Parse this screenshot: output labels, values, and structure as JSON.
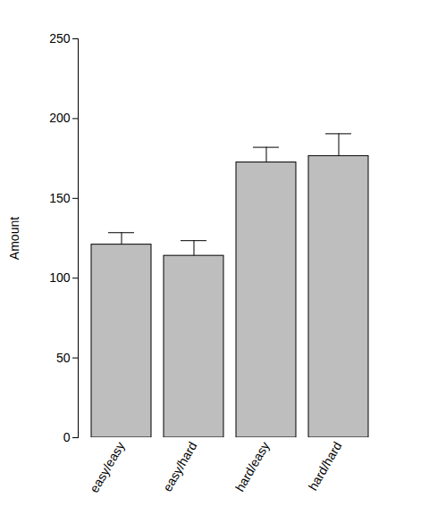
{
  "chart_data": {
    "type": "bar",
    "categories": [
      "easy/easy",
      "easy/hard",
      "hard/easy",
      "hard/hard"
    ],
    "values": [
      121,
      114,
      172.5,
      176.5
    ],
    "errors": [
      7.5,
      9.5,
      9.5,
      14
    ],
    "color": "#bebebe",
    "y_label": "Amount",
    "ylim": [
      0,
      250
    ],
    "yticks": [
      0,
      50,
      100,
      150,
      200,
      250
    ],
    "grid": false
  }
}
